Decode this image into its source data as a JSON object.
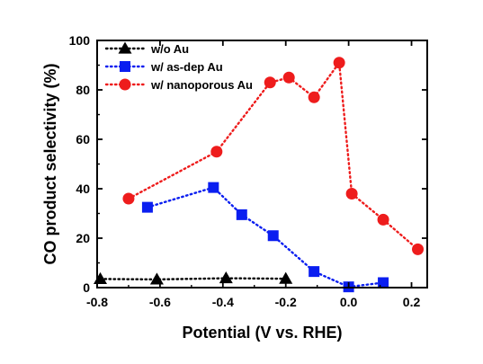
{
  "chart_data": {
    "type": "line",
    "title": "",
    "xlabel": "Potential (V vs. RHE)",
    "ylabel": "CO product selectivity (%)",
    "xlim": [
      -0.8,
      0.25
    ],
    "ylim": [
      0,
      100
    ],
    "xticks": [
      "-0.8",
      "-0.6",
      "-0.4",
      "-0.2",
      "0.0",
      "0.2"
    ],
    "yticks": [
      "0",
      "20",
      "40",
      "60",
      "80",
      "100"
    ],
    "legend_position": "top-left",
    "grid": false,
    "series": [
      {
        "name": "w/o Au",
        "color": "#000000",
        "marker": "triangle",
        "line": "dotted",
        "points": [
          [
            -0.79,
            3.5
          ],
          [
            -0.61,
            3.3
          ],
          [
            -0.39,
            3.8
          ],
          [
            -0.2,
            3.6
          ]
        ]
      },
      {
        "name": "w/ as-dep Au",
        "color": "#0a1ef0",
        "marker": "square",
        "line": "dotted",
        "points": [
          [
            -0.64,
            32.5
          ],
          [
            -0.43,
            40.5
          ],
          [
            -0.34,
            29.5
          ],
          [
            -0.24,
            21
          ],
          [
            -0.11,
            6.5
          ],
          [
            0.0,
            0.3
          ],
          [
            0.11,
            2.0
          ]
        ]
      },
      {
        "name": "w/ nanoporous Au",
        "color": "#ee1c1c",
        "marker": "circle",
        "line": "dotted",
        "points": [
          [
            -0.7,
            36
          ],
          [
            -0.42,
            55
          ],
          [
            -0.25,
            83
          ],
          [
            -0.19,
            85
          ],
          [
            -0.11,
            77
          ],
          [
            -0.03,
            91
          ],
          [
            0.01,
            38
          ],
          [
            0.11,
            27.5
          ],
          [
            0.22,
            15.5
          ]
        ]
      }
    ]
  }
}
